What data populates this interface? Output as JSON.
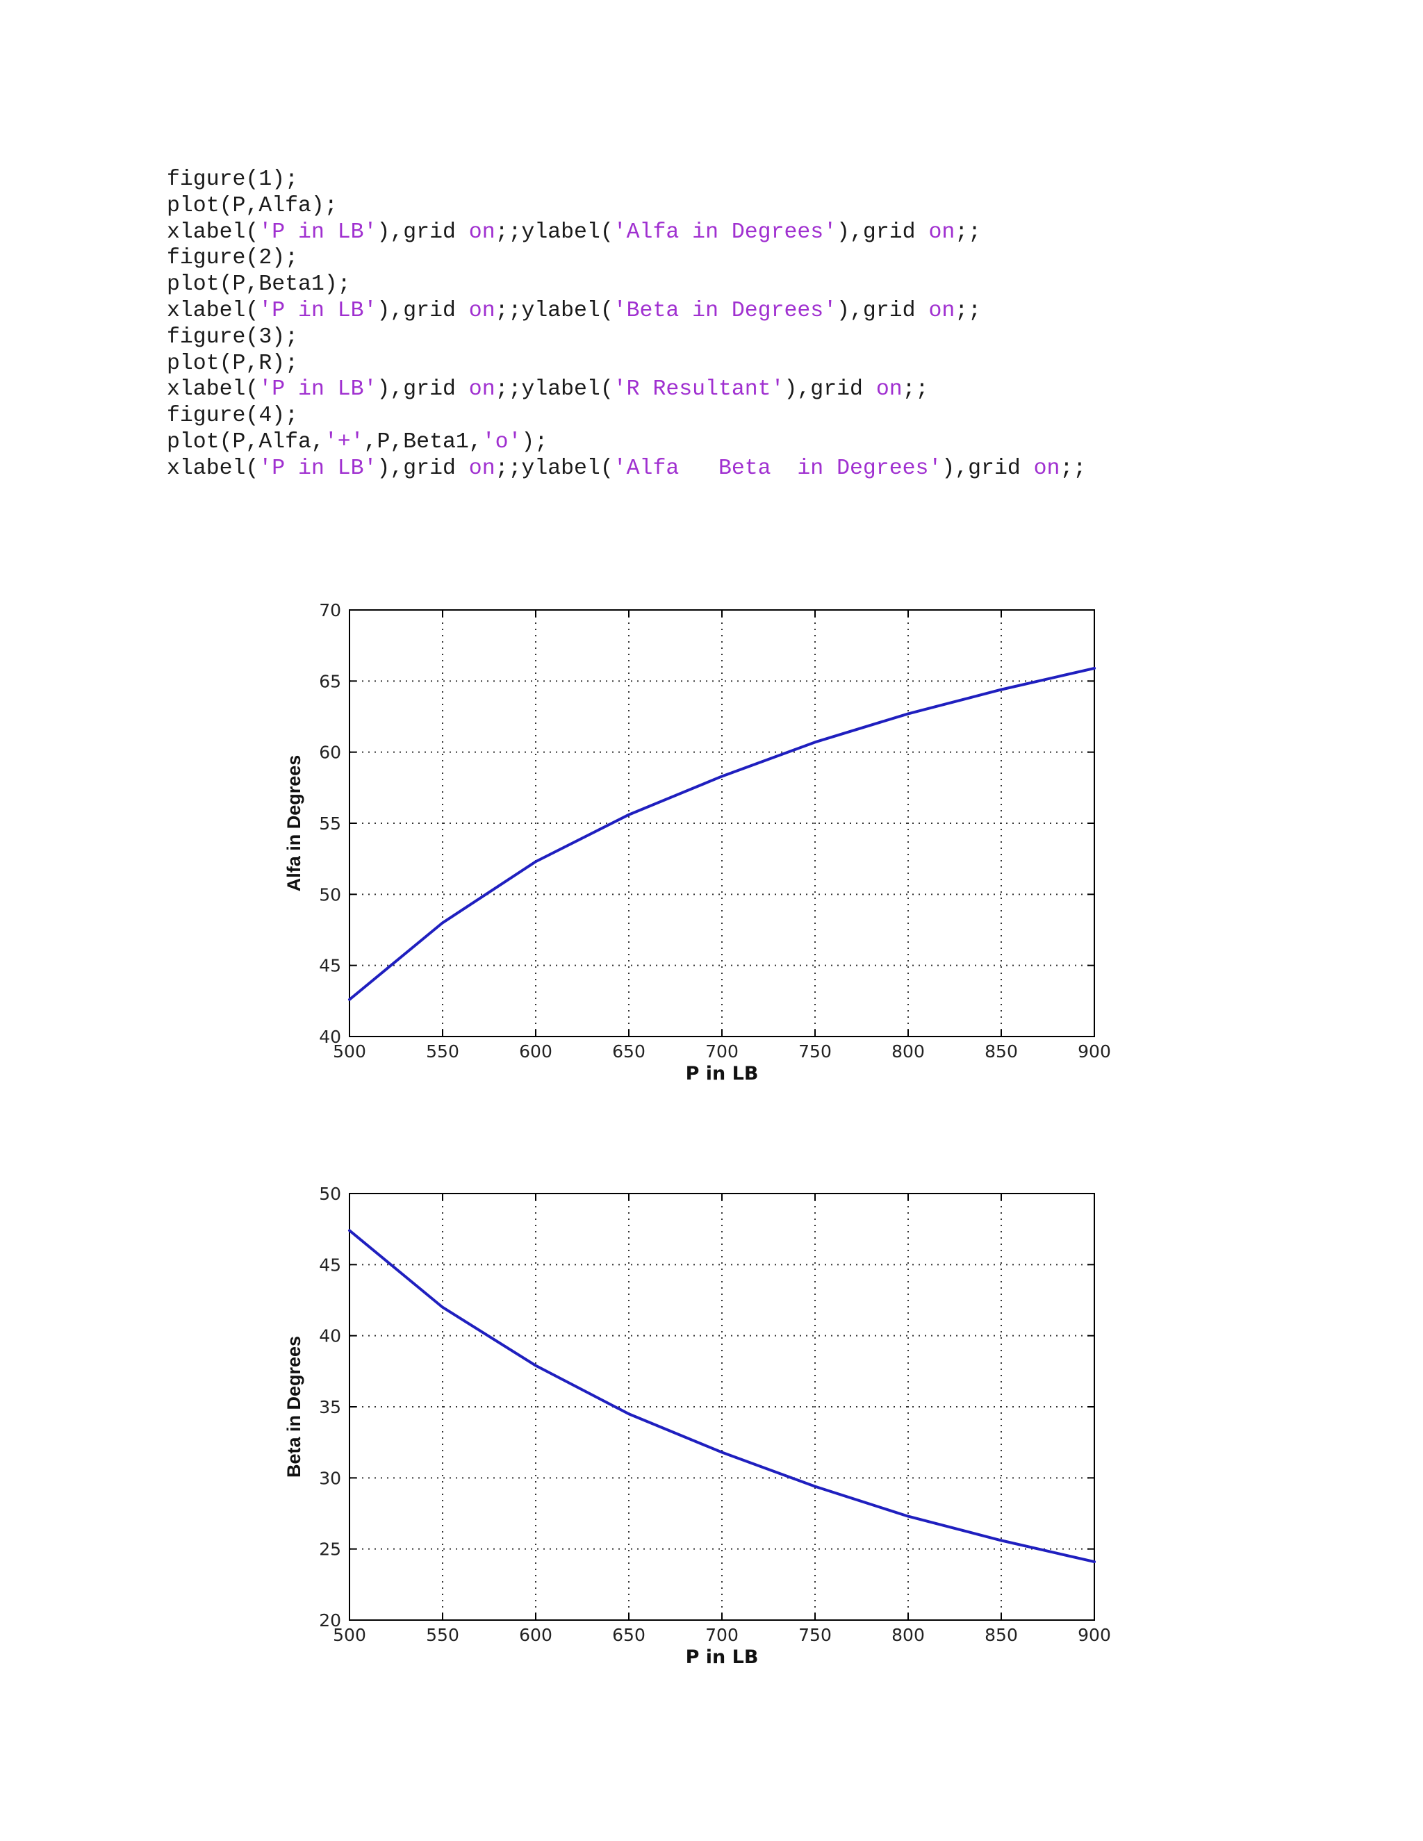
{
  "code": {
    "lines": [
      [
        {
          "t": "figure(1);",
          "c": "plain"
        }
      ],
      [
        {
          "t": "plot(P,Alfa);",
          "c": "plain"
        }
      ],
      [
        {
          "t": "xlabel(",
          "c": "plain"
        },
        {
          "t": "'P in LB'",
          "c": "str"
        },
        {
          "t": "),grid ",
          "c": "plain"
        },
        {
          "t": "on",
          "c": "kw"
        },
        {
          "t": ";;ylabel(",
          "c": "plain"
        },
        {
          "t": "'Alfa in Degrees'",
          "c": "str"
        },
        {
          "t": "),grid ",
          "c": "plain"
        },
        {
          "t": "on",
          "c": "kw"
        },
        {
          "t": ";;",
          "c": "plain"
        }
      ],
      [
        {
          "t": "figure(2);",
          "c": "plain"
        }
      ],
      [
        {
          "t": "plot(P,Beta1);",
          "c": "plain"
        }
      ],
      [
        {
          "t": "xlabel(",
          "c": "plain"
        },
        {
          "t": "'P in LB'",
          "c": "str"
        },
        {
          "t": "),grid ",
          "c": "plain"
        },
        {
          "t": "on",
          "c": "kw"
        },
        {
          "t": ";;ylabel(",
          "c": "plain"
        },
        {
          "t": "'Beta in Degrees'",
          "c": "str"
        },
        {
          "t": "),grid ",
          "c": "plain"
        },
        {
          "t": "on",
          "c": "kw"
        },
        {
          "t": ";;",
          "c": "plain"
        }
      ],
      [
        {
          "t": "figure(3);",
          "c": "plain"
        }
      ],
      [
        {
          "t": "plot(P,R);",
          "c": "plain"
        }
      ],
      [
        {
          "t": "xlabel(",
          "c": "plain"
        },
        {
          "t": "'P in LB'",
          "c": "str"
        },
        {
          "t": "),grid ",
          "c": "plain"
        },
        {
          "t": "on",
          "c": "kw"
        },
        {
          "t": ";;ylabel(",
          "c": "plain"
        },
        {
          "t": "'R Resultant'",
          "c": "str"
        },
        {
          "t": "),grid ",
          "c": "plain"
        },
        {
          "t": "on",
          "c": "kw"
        },
        {
          "t": ";;",
          "c": "plain"
        }
      ],
      [
        {
          "t": "figure(4);",
          "c": "plain"
        }
      ],
      [
        {
          "t": "plot(P,Alfa,",
          "c": "plain"
        },
        {
          "t": "'+'",
          "c": "str"
        },
        {
          "t": ",P,Beta1,",
          "c": "plain"
        },
        {
          "t": "'o'",
          "c": "str"
        },
        {
          "t": ");",
          "c": "plain"
        }
      ],
      [
        {
          "t": "xlabel(",
          "c": "plain"
        },
        {
          "t": "'P in LB'",
          "c": "str"
        },
        {
          "t": "),grid ",
          "c": "plain"
        },
        {
          "t": "on",
          "c": "kw"
        },
        {
          "t": ";;ylabel(",
          "c": "plain"
        },
        {
          "t": "'Alfa   Beta  in Degrees'",
          "c": "str"
        },
        {
          "t": "),grid ",
          "c": "plain"
        },
        {
          "t": "on",
          "c": "kw"
        },
        {
          "t": ";;",
          "c": "plain"
        }
      ]
    ]
  },
  "colors": {
    "line": "#1f1fbf",
    "grid": "#333333",
    "axis": "#000000",
    "string_token": "#a030d0"
  },
  "chart_data": [
    {
      "type": "line",
      "title": "",
      "xlabel": "P in LB",
      "ylabel": "Alfa in Degrees",
      "xlim": [
        500,
        900
      ],
      "ylim": [
        40,
        70
      ],
      "xticks": [
        500,
        550,
        600,
        650,
        700,
        750,
        800,
        850,
        900
      ],
      "yticks": [
        40,
        45,
        50,
        55,
        60,
        65,
        70
      ],
      "grid": true,
      "x": [
        500,
        550,
        600,
        650,
        700,
        750,
        800,
        850,
        900
      ],
      "series": [
        {
          "values": [
            42.6,
            48.0,
            52.3,
            55.6,
            58.3,
            60.7,
            62.7,
            64.4,
            65.9
          ]
        }
      ]
    },
    {
      "type": "line",
      "title": "",
      "xlabel": "P in LB",
      "ylabel": "Beta in Degrees",
      "xlim": [
        500,
        900
      ],
      "ylim": [
        20,
        50
      ],
      "xticks": [
        500,
        550,
        600,
        650,
        700,
        750,
        800,
        850,
        900
      ],
      "yticks": [
        20,
        25,
        30,
        35,
        40,
        45,
        50
      ],
      "grid": true,
      "x": [
        500,
        550,
        600,
        650,
        700,
        750,
        800,
        850,
        900
      ],
      "series": [
        {
          "values": [
            47.4,
            42.0,
            37.9,
            34.5,
            31.8,
            29.4,
            27.3,
            25.6,
            24.1
          ]
        }
      ]
    }
  ]
}
